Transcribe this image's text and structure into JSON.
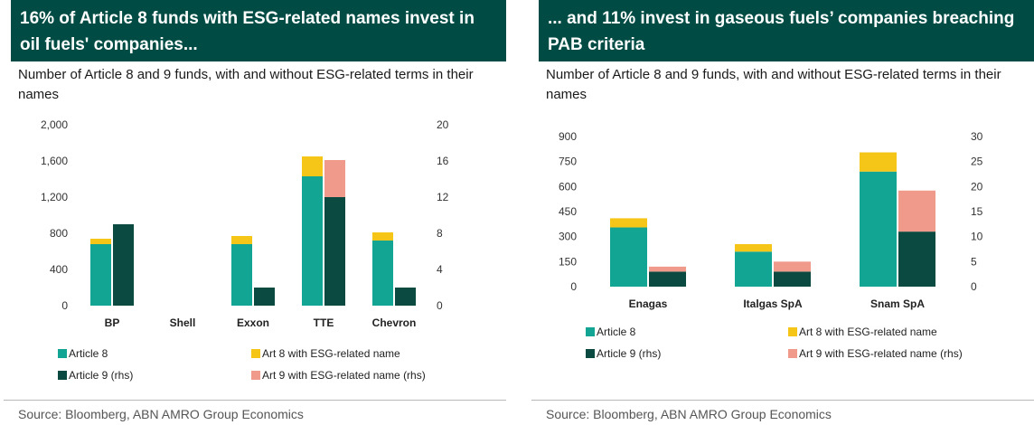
{
  "charts": {
    "left": {
      "banner": "16% of Article 8 funds with ESG-related names invest in oil fuels' companies...",
      "subtitle": "Number of Article 8 and 9 funds, with and without ESG-related terms in their names",
      "source": "Source: Bloomberg, ABN AMRO Group Economics"
    },
    "right": {
      "banner": "... and 11% invest in gaseous fuels’ companies breaching PAB criteria",
      "subtitle": "Number of Article 8 and 9 funds, with and without ESG-related terms in their names",
      "source": "Source: Bloomberg, ABN AMRO Group Economics"
    }
  },
  "colors": {
    "article8": "#12a594",
    "art8_esg": "#f5c518",
    "article9": "#0b4a40",
    "art9_esg": "#ef9a8a",
    "banner": "#004c45"
  },
  "chart_data": [
    {
      "type": "bar",
      "title": "16% of Article 8 funds with ESG-related names invest in oil fuels' companies...",
      "subtitle": "Number of Article 8 and 9 funds, with and without ESG-related terms in their names",
      "categories": [
        "BP",
        "Shell",
        "Exxon",
        "TTE",
        "Chevron"
      ],
      "ylim": [
        0,
        2000
      ],
      "yticks": [
        "0",
        "400",
        "800",
        "1,200",
        "1,600",
        "2,000"
      ],
      "ytick_values": [
        0,
        400,
        800,
        1200,
        1600,
        2000
      ],
      "y2lim": [
        0,
        20
      ],
      "y2ticks": [
        "0",
        "4",
        "8",
        "12",
        "16",
        "20"
      ],
      "y2tick_values": [
        0,
        4,
        8,
        12,
        16,
        20
      ],
      "series": [
        {
          "name": "Article 8",
          "axis": "left",
          "stack": "a8",
          "values": [
            680,
            0,
            680,
            1430,
            720
          ]
        },
        {
          "name": "Art 8 with ESG-related name",
          "axis": "left",
          "stack": "a8",
          "values": [
            60,
            0,
            90,
            220,
            90
          ]
        },
        {
          "name": "Article 9 (rhs)",
          "axis": "right",
          "stack": "a9",
          "values": [
            9,
            0,
            2,
            12,
            2
          ]
        },
        {
          "name": "Art 9 with ESG-related name (rhs)",
          "axis": "right",
          "stack": "a9",
          "values": [
            0,
            0,
            0,
            4.1,
            0
          ]
        }
      ],
      "source": "Source: Bloomberg, ABN AMRO Group Economics"
    },
    {
      "type": "bar",
      "title": "... and 11% invest in gaseous fuels’ companies breaching PAB criteria",
      "subtitle": "Number of Article 8 and 9 funds, with and without ESG-related terms in their names",
      "categories": [
        "Enagas",
        "Italgas SpA",
        "Snam SpA"
      ],
      "ylim": [
        0,
        900
      ],
      "yticks": [
        "0",
        "150",
        "300",
        "450",
        "600",
        "750",
        "900"
      ],
      "ytick_values": [
        0,
        150,
        300,
        450,
        600,
        750,
        900
      ],
      "y2lim": [
        0,
        30
      ],
      "y2ticks": [
        "0",
        "5",
        "10",
        "15",
        "20",
        "25",
        "30"
      ],
      "y2tick_values": [
        0,
        5,
        10,
        15,
        20,
        25,
        30
      ],
      "series": [
        {
          "name": "Article 8",
          "axis": "left",
          "stack": "a8",
          "values": [
            355,
            210,
            690
          ]
        },
        {
          "name": "Art 8 with ESG-related name",
          "axis": "left",
          "stack": "a8",
          "values": [
            55,
            45,
            115
          ]
        },
        {
          "name": "Article 9 (rhs)",
          "axis": "right",
          "stack": "a9",
          "values": [
            3,
            3,
            11
          ]
        },
        {
          "name": "Art 9 with ESG-related name (rhs)",
          "axis": "right",
          "stack": "a9",
          "values": [
            1,
            2,
            8.2
          ]
        }
      ],
      "source": "Source: Bloomberg, ABN AMRO Group Economics"
    }
  ]
}
